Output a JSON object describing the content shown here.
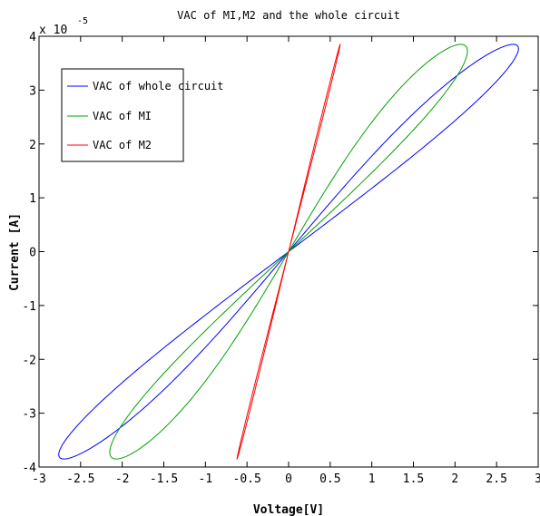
{
  "chart_data": {
    "type": "line",
    "title": "VAC of MI,M2 and the whole circuit",
    "xlabel": "Voltage[V]",
    "ylabel": "Current [A]",
    "y_multiplier_base": "x 10",
    "y_multiplier_exp": "-5",
    "xlim": [
      -3,
      3
    ],
    "ylim": [
      -4,
      4
    ],
    "x_ticks": [
      "-3",
      "-2.5",
      "-2",
      "-1.5",
      "-1",
      "-0.5",
      "0",
      "0.5",
      "1",
      "1.5",
      "2",
      "2.5",
      "3"
    ],
    "y_ticks": [
      "-4",
      "-3",
      "-2",
      "-1",
      "0",
      "1",
      "2",
      "3",
      "4"
    ],
    "legend_position": "top-left",
    "series": [
      {
        "name": "VAC of whole circuit",
        "color": "#0000ff",
        "loop": {
          "peak_voltage": 2.7,
          "peak_current": 3.85,
          "width_voltage": 0.3
        }
      },
      {
        "name": "VAC of MI",
        "color": "#00a000",
        "loop": {
          "peak_voltage": 2.07,
          "peak_current": 3.85,
          "width_voltage": 0.3
        }
      },
      {
        "name": "VAC of M2",
        "color": "#ff0000",
        "loop": {
          "peak_voltage": 0.62,
          "peak_current": 3.85,
          "width_voltage": 0.01
        }
      }
    ]
  }
}
